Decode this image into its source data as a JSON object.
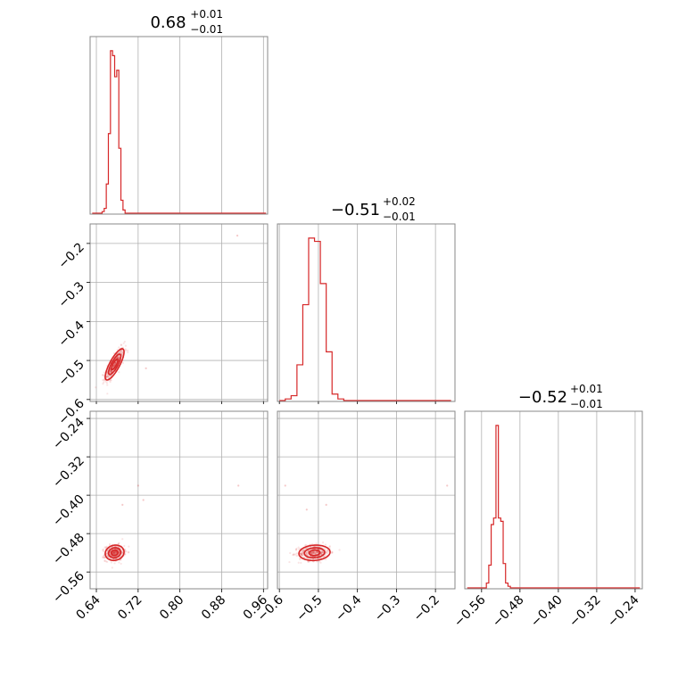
{
  "colors": {
    "series": "#d62728",
    "frame": "#888888",
    "grid": "#b0b0b0",
    "background": "#ffffff"
  },
  "chart_data": {
    "type": "corner",
    "grid": true,
    "parameters": [
      {
        "title_value": "0.68",
        "title_plus": "+0.01",
        "title_minus": "−0.01",
        "median": 0.68,
        "err_plus": 0.01,
        "err_minus": 0.01,
        "range": [
          0.628,
          0.968
        ],
        "ticks": [
          0.64,
          0.72,
          0.8,
          0.88,
          0.96
        ],
        "tick_labels": [
          "0.64",
          "0.72",
          "0.80",
          "0.88",
          "0.96"
        ],
        "hist_bins": [
          [
            0.632,
            0.651,
            0
          ],
          [
            0.651,
            0.655,
            0.01
          ],
          [
            0.655,
            0.659,
            0.03
          ],
          [
            0.659,
            0.663,
            0.18
          ],
          [
            0.663,
            0.667,
            0.49
          ],
          [
            0.667,
            0.671,
            1.0
          ],
          [
            0.671,
            0.675,
            0.97
          ],
          [
            0.675,
            0.679,
            0.84
          ],
          [
            0.679,
            0.683,
            0.88
          ],
          [
            0.683,
            0.687,
            0.4
          ],
          [
            0.687,
            0.691,
            0.08
          ],
          [
            0.691,
            0.695,
            0.02
          ],
          [
            0.695,
            0.965,
            0
          ]
        ]
      },
      {
        "title_value": "−0.51",
        "title_plus": "+0.02",
        "title_minus": "−0.01",
        "median": -0.51,
        "err_plus": 0.02,
        "err_minus": 0.01,
        "range": [
          -0.605,
          -0.15
        ],
        "ticks": [
          -0.6,
          -0.5,
          -0.4,
          -0.3,
          -0.2
        ],
        "tick_labels": [
          "−0.6",
          "−0.5",
          "−0.4",
          "−0.3",
          "−0.2"
        ],
        "y_tick_labels": [
          "−0.2",
          "−0.3",
          "−0.4",
          "−0.5",
          "−0.6"
        ],
        "hist_bins": [
          [
            -0.6,
            -0.585,
            0
          ],
          [
            -0.585,
            -0.57,
            0.01
          ],
          [
            -0.57,
            -0.555,
            0.03
          ],
          [
            -0.555,
            -0.54,
            0.22
          ],
          [
            -0.54,
            -0.525,
            0.59
          ],
          [
            -0.525,
            -0.51,
            1.0
          ],
          [
            -0.51,
            -0.495,
            0.98
          ],
          [
            -0.495,
            -0.48,
            0.72
          ],
          [
            -0.48,
            -0.465,
            0.3
          ],
          [
            -0.465,
            -0.45,
            0.04
          ],
          [
            -0.45,
            -0.435,
            0.01
          ],
          [
            -0.435,
            -0.16,
            0
          ]
        ]
      },
      {
        "title_value": "−0.52",
        "title_plus": "+0.01",
        "title_minus": "−0.01",
        "median": -0.52,
        "err_plus": 0.01,
        "err_minus": 0.01,
        "range": [
          -0.595,
          -0.225
        ],
        "ticks": [
          -0.56,
          -0.48,
          -0.4,
          -0.32,
          -0.24
        ],
        "tick_labels": [
          "−0.56",
          "−0.48",
          "−0.40",
          "−0.32",
          "−0.24"
        ],
        "y_tick_labels": [
          "−0.24",
          "−0.32",
          "−0.40",
          "−0.48",
          "−0.56"
        ],
        "hist_bins": [
          [
            -0.59,
            -0.55,
            0
          ],
          [
            -0.55,
            -0.545,
            0.03
          ],
          [
            -0.545,
            -0.54,
            0.14
          ],
          [
            -0.54,
            -0.535,
            0.39
          ],
          [
            -0.535,
            -0.53,
            0.43
          ],
          [
            -0.53,
            -0.525,
            1.0
          ],
          [
            -0.525,
            -0.52,
            0.43
          ],
          [
            -0.52,
            -0.515,
            0.41
          ],
          [
            -0.515,
            -0.51,
            0.15
          ],
          [
            -0.51,
            -0.505,
            0.03
          ],
          [
            -0.505,
            -0.5,
            0.01
          ],
          [
            -0.5,
            -0.23,
            0
          ]
        ]
      }
    ],
    "pairs": [
      {
        "x_param": 0,
        "y_param": 1,
        "center": [
          0.675,
          -0.51
        ],
        "sigma": [
          0.009,
          0.02
        ],
        "rho": 0.8,
        "outliers": [
          [
            0.91,
            -0.18
          ],
          [
            0.735,
            -0.52
          ]
        ]
      },
      {
        "x_param": 0,
        "y_param": 2,
        "center": [
          0.675,
          -0.52
        ],
        "sigma": [
          0.009,
          0.008
        ],
        "rho": 0.1,
        "outliers": [
          [
            0.72,
            -0.38
          ],
          [
            0.73,
            -0.41
          ],
          [
            0.69,
            -0.42
          ],
          [
            0.912,
            -0.38
          ]
        ]
      },
      {
        "x_param": 1,
        "y_param": 2,
        "center": [
          -0.51,
          -0.52
        ],
        "sigma": [
          0.02,
          0.008
        ],
        "rho": 0.1,
        "outliers": [
          [
            -0.585,
            -0.38
          ],
          [
            -0.48,
            -0.42
          ],
          [
            -0.53,
            -0.43
          ],
          [
            -0.17,
            -0.38
          ]
        ]
      }
    ]
  }
}
